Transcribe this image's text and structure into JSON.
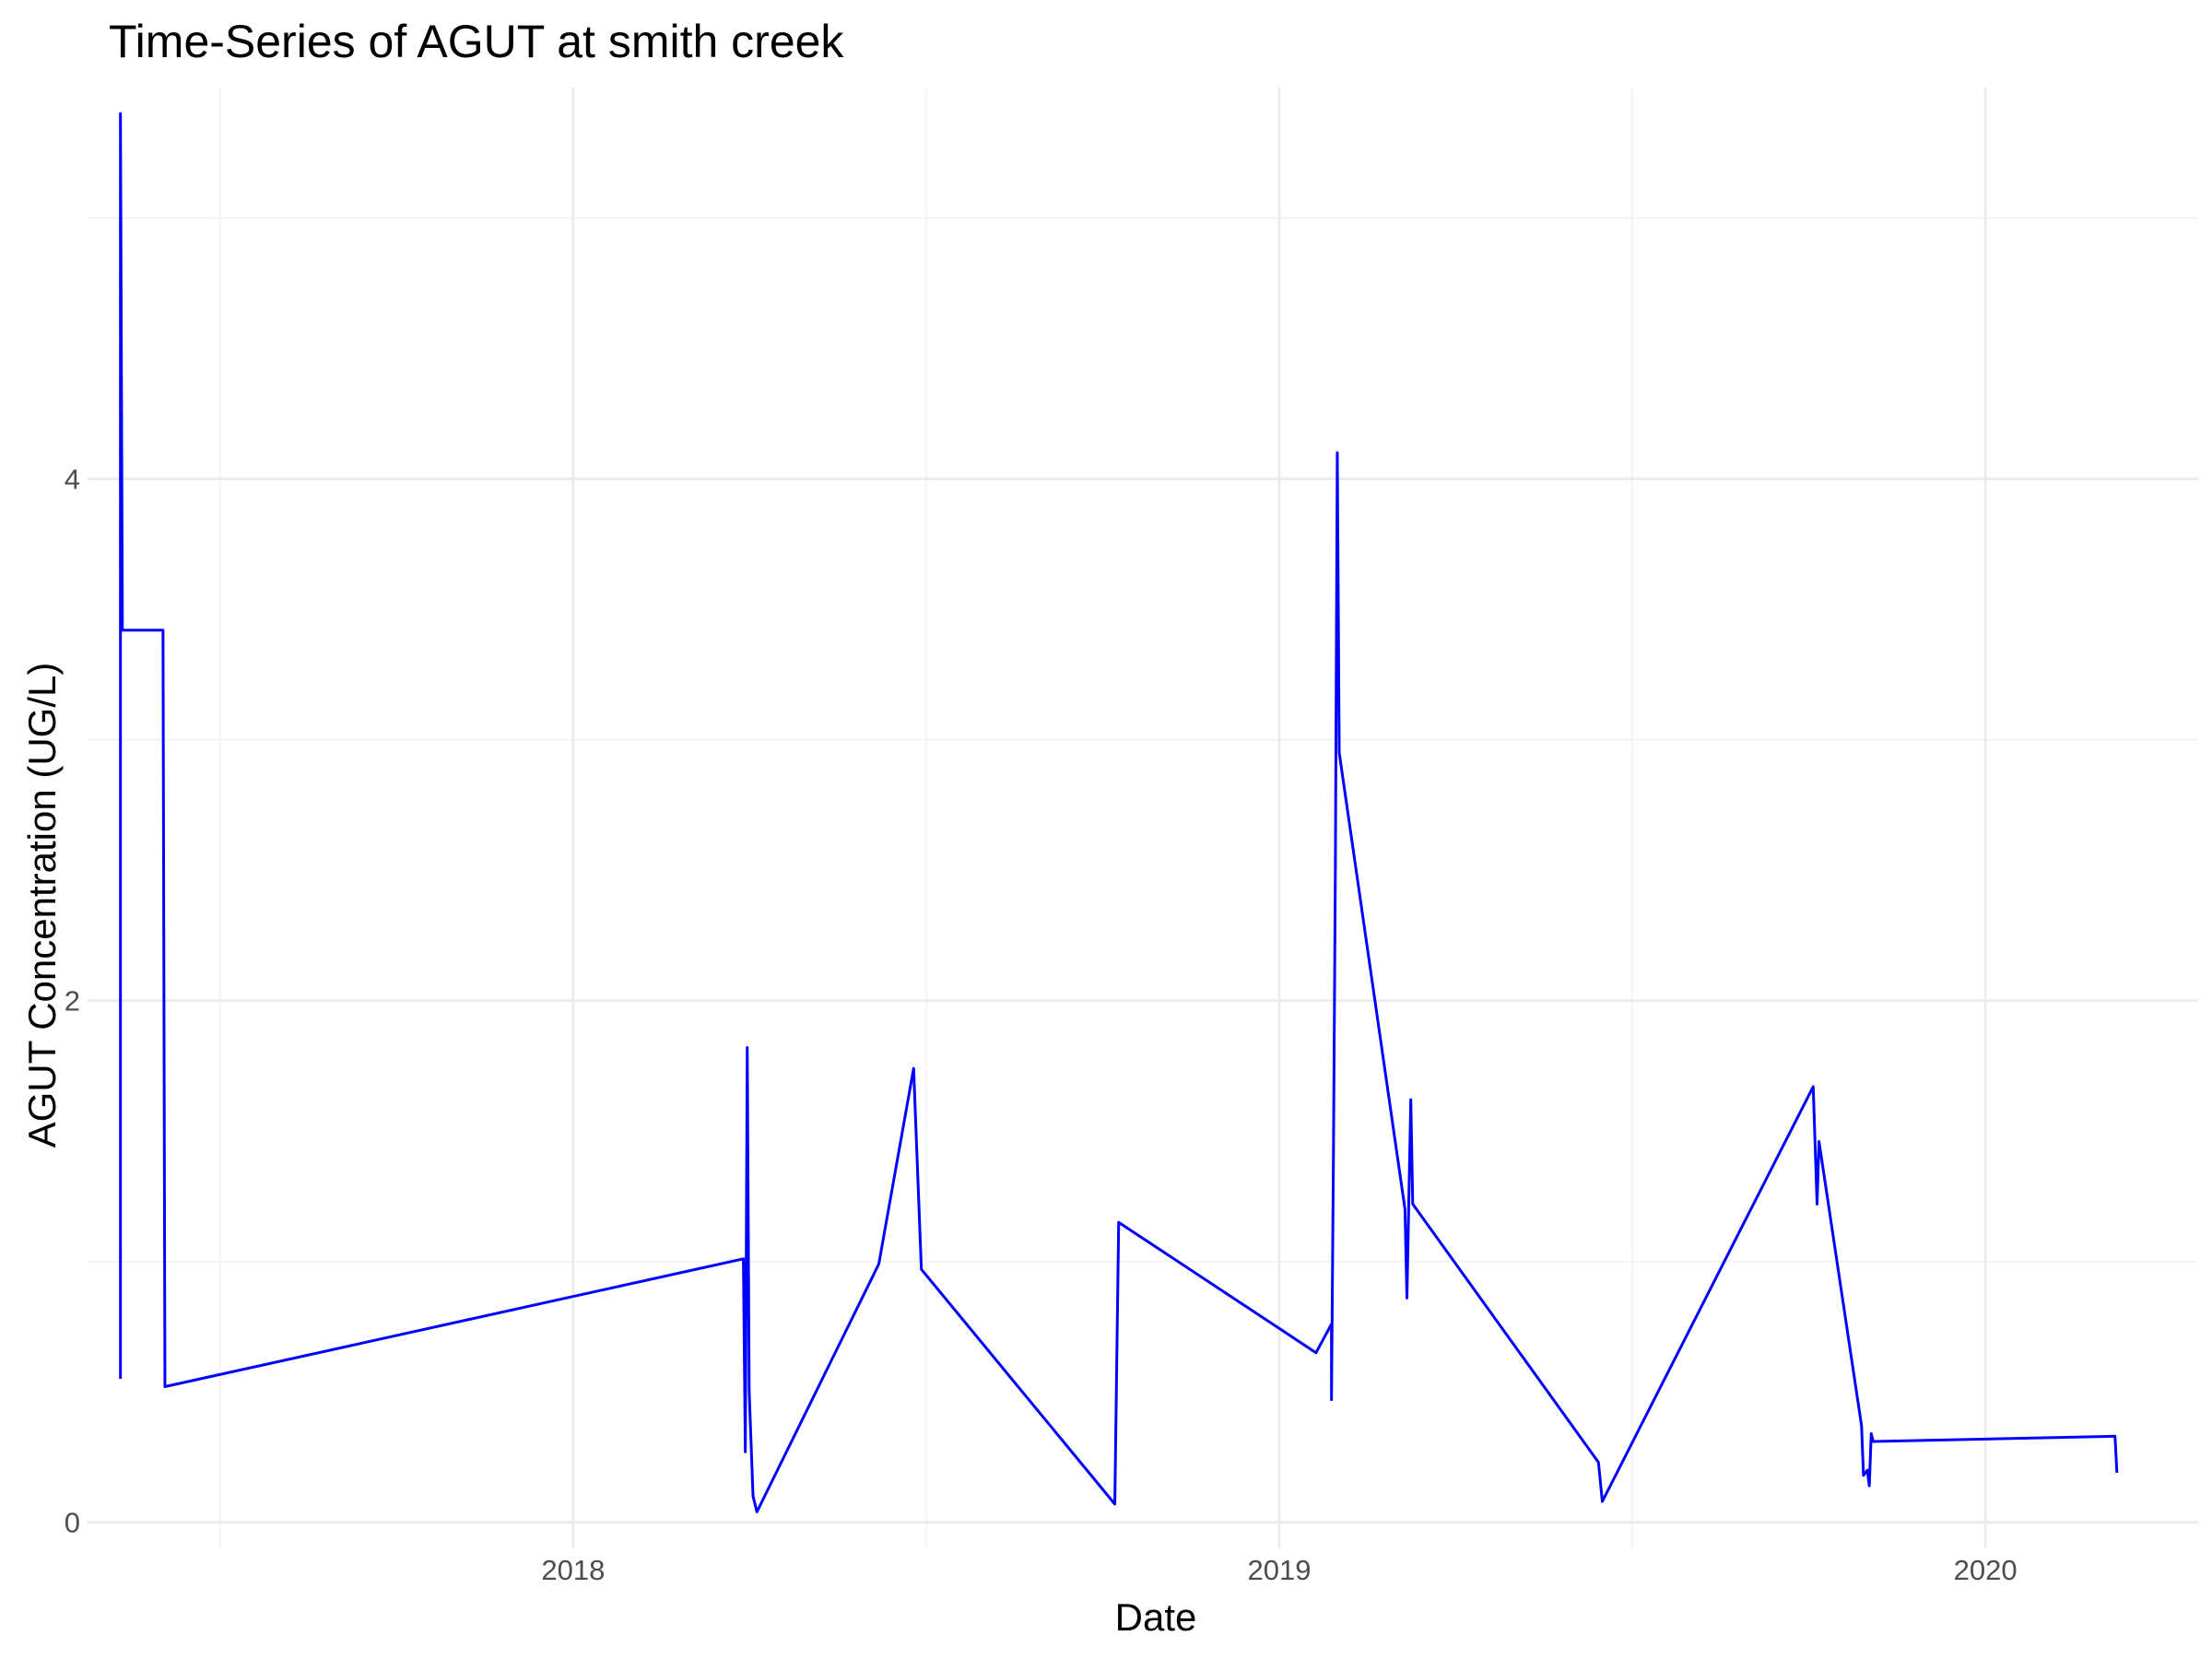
{
  "chart_data": {
    "type": "line",
    "title": "Time-Series of AGUT at smith creek",
    "xlabel": "Date",
    "ylabel": "AGUT Concentration (UG/L)",
    "x_scale": "date",
    "xlim": [
      "2017-04-25",
      "2020-04-20"
    ],
    "ylim": [
      -0.1,
      5.5
    ],
    "x_ticks": [
      {
        "date": "2018-01-01",
        "label": "2018"
      },
      {
        "date": "2019-01-01",
        "label": "2019"
      },
      {
        "date": "2020-01-01",
        "label": "2020"
      }
    ],
    "y_ticks": [
      0,
      2,
      4
    ],
    "grid": true,
    "legend": "none",
    "series": [
      {
        "color": "#0000ff",
        "points": [
          {
            "x": "2017-05-12",
            "y": 0.55
          },
          {
            "x": "2017-05-12",
            "y": 5.4
          },
          {
            "x": "2017-05-13",
            "y": 3.42
          },
          {
            "x": "2017-06-03",
            "y": 3.42
          },
          {
            "x": "2017-06-04",
            "y": 0.52
          },
          {
            "x": "2018-03-30",
            "y": 1.01
          },
          {
            "x": "2018-03-31",
            "y": 0.27
          },
          {
            "x": "2018-04-01",
            "y": 1.82
          },
          {
            "x": "2018-04-02",
            "y": 0.5
          },
          {
            "x": "2018-04-04",
            "y": 0.1
          },
          {
            "x": "2018-04-06",
            "y": 0.04
          },
          {
            "x": "2018-06-08",
            "y": 0.99
          },
          {
            "x": "2018-06-26",
            "y": 1.74
          },
          {
            "x": "2018-06-30",
            "y": 0.97
          },
          {
            "x": "2018-10-08",
            "y": 0.07
          },
          {
            "x": "2018-10-10",
            "y": 1.15
          },
          {
            "x": "2019-01-20",
            "y": 0.65
          },
          {
            "x": "2019-01-28",
            "y": 0.76
          },
          {
            "x": "2019-01-28",
            "y": 0.47
          },
          {
            "x": "2019-01-29",
            "y": 1.4
          },
          {
            "x": "2019-01-30",
            "y": 2.5
          },
          {
            "x": "2019-01-31",
            "y": 4.1
          },
          {
            "x": "2019-02-01",
            "y": 2.95
          },
          {
            "x": "2019-03-07",
            "y": 1.2
          },
          {
            "x": "2019-03-08",
            "y": 0.86
          },
          {
            "x": "2019-03-10",
            "y": 1.62
          },
          {
            "x": "2019-03-11",
            "y": 1.22
          },
          {
            "x": "2019-06-15",
            "y": 0.23
          },
          {
            "x": "2019-06-17",
            "y": 0.08
          },
          {
            "x": "2019-10-04",
            "y": 1.67
          },
          {
            "x": "2019-10-06",
            "y": 1.22
          },
          {
            "x": "2019-10-07",
            "y": 1.46
          },
          {
            "x": "2019-10-29",
            "y": 0.37
          },
          {
            "x": "2019-10-30",
            "y": 0.18
          },
          {
            "x": "2019-11-01",
            "y": 0.2
          },
          {
            "x": "2019-11-02",
            "y": 0.14
          },
          {
            "x": "2019-11-03",
            "y": 0.34
          },
          {
            "x": "2019-11-04",
            "y": 0.31
          },
          {
            "x": "2020-03-08",
            "y": 0.33
          },
          {
            "x": "2020-03-09",
            "y": 0.19
          }
        ]
      }
    ]
  }
}
